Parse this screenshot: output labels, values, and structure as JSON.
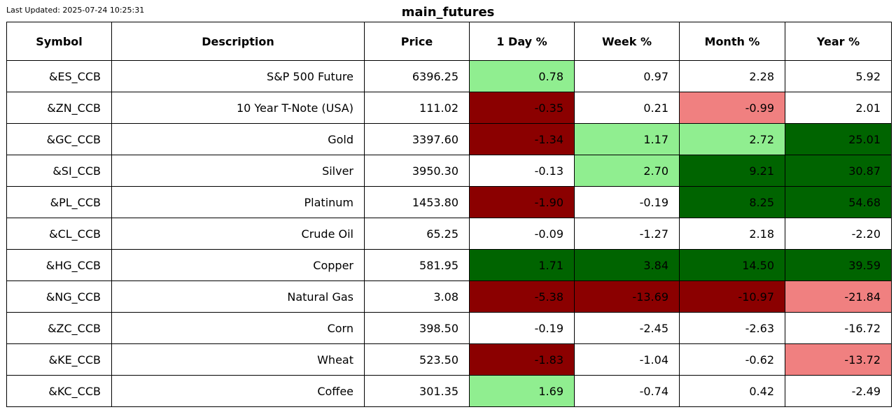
{
  "last_updated": "Last Updated: 2025-07-24 10:25:31",
  "title": "main_futures",
  "colors": {
    "strong_positive": "#006400",
    "positive": "#90ee90",
    "negative": "#f08080",
    "strong_negative": "#8b0000",
    "neutral": "#ffffff",
    "border": "#000000"
  },
  "chart_data": {
    "type": "table",
    "title": "main_futures",
    "columns": [
      "Symbol",
      "Description",
      "Price",
      "1 Day %",
      "Week %",
      "Month %",
      "Year %"
    ],
    "rows": [
      {
        "cells": [
          "&ES_CCB",
          "S&P 500 Future",
          "6396.25",
          "0.78",
          "0.97",
          "2.28",
          "5.92"
        ],
        "shading": [
          "",
          "",
          "",
          "positive",
          "",
          "",
          ""
        ]
      },
      {
        "cells": [
          "&ZN_CCB",
          "10 Year T-Note (USA)",
          "111.02",
          "-0.35",
          "0.21",
          "-0.99",
          "2.01"
        ],
        "shading": [
          "",
          "",
          "",
          "strong_negative",
          "",
          "negative",
          ""
        ]
      },
      {
        "cells": [
          "&GC_CCB",
          "Gold",
          "3397.60",
          "-1.34",
          "1.17",
          "2.72",
          "25.01"
        ],
        "shading": [
          "",
          "",
          "",
          "strong_negative",
          "positive",
          "positive",
          "strong_positive"
        ]
      },
      {
        "cells": [
          "&SI_CCB",
          "Silver",
          "3950.30",
          "-0.13",
          "2.70",
          "9.21",
          "30.87"
        ],
        "shading": [
          "",
          "",
          "",
          "",
          "positive",
          "strong_positive",
          "strong_positive"
        ]
      },
      {
        "cells": [
          "&PL_CCB",
          "Platinum",
          "1453.80",
          "-1.90",
          "-0.19",
          "8.25",
          "54.68"
        ],
        "shading": [
          "",
          "",
          "",
          "strong_negative",
          "",
          "strong_positive",
          "strong_positive"
        ]
      },
      {
        "cells": [
          "&CL_CCB",
          "Crude Oil",
          "65.25",
          "-0.09",
          "-1.27",
          "2.18",
          "-2.20"
        ],
        "shading": [
          "",
          "",
          "",
          "",
          "",
          "",
          ""
        ]
      },
      {
        "cells": [
          "&HG_CCB",
          "Copper",
          "581.95",
          "1.71",
          "3.84",
          "14.50",
          "39.59"
        ],
        "shading": [
          "",
          "",
          "",
          "strong_positive",
          "strong_positive",
          "strong_positive",
          "strong_positive"
        ]
      },
      {
        "cells": [
          "&NG_CCB",
          "Natural Gas",
          "3.08",
          "-5.38",
          "-13.69",
          "-10.97",
          "-21.84"
        ],
        "shading": [
          "",
          "",
          "",
          "strong_negative",
          "strong_negative",
          "strong_negative",
          "negative"
        ]
      },
      {
        "cells": [
          "&ZC_CCB",
          "Corn",
          "398.50",
          "-0.19",
          "-2.45",
          "-2.63",
          "-16.72"
        ],
        "shading": [
          "",
          "",
          "",
          "",
          "",
          "",
          ""
        ]
      },
      {
        "cells": [
          "&KE_CCB",
          "Wheat",
          "523.50",
          "-1.83",
          "-1.04",
          "-0.62",
          "-13.72"
        ],
        "shading": [
          "",
          "",
          "",
          "strong_negative",
          "",
          "",
          "negative"
        ]
      },
      {
        "cells": [
          "&KC_CCB",
          "Coffee",
          "301.35",
          "1.69",
          "-0.74",
          "0.42",
          "-2.49"
        ],
        "shading": [
          "",
          "",
          "",
          "positive",
          "",
          "",
          ""
        ]
      }
    ]
  }
}
